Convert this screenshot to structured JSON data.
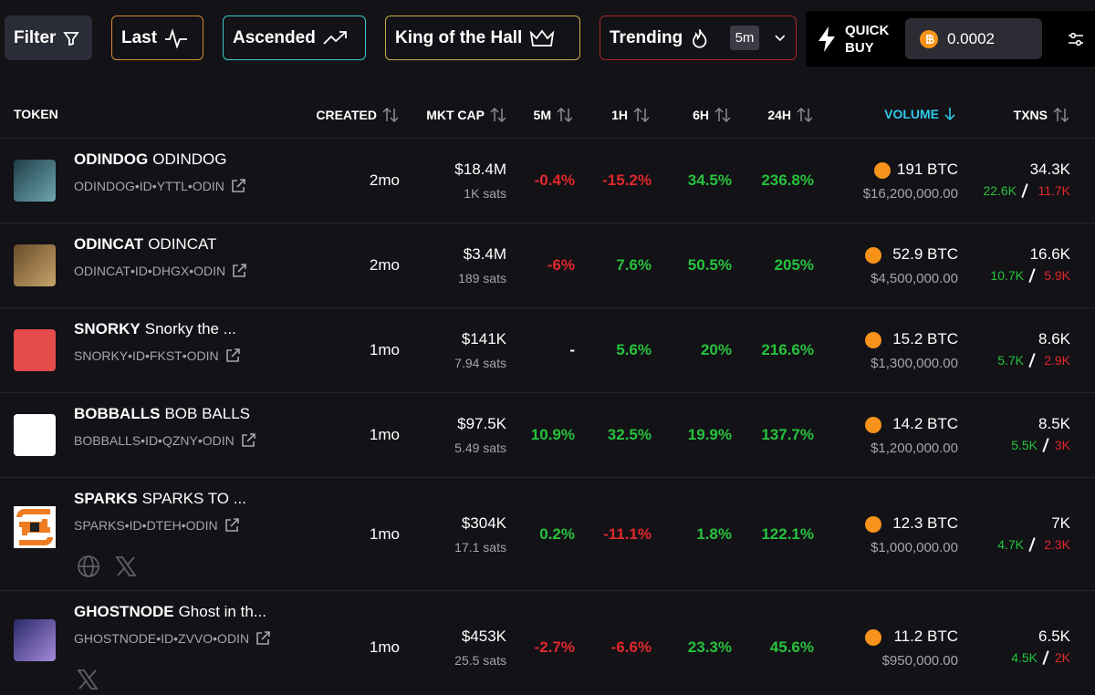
{
  "toolbar": {
    "filter": "Filter",
    "last": "Last",
    "ascended": "Ascended",
    "king": "King of the Hall",
    "trending": "Trending",
    "interval": "5m",
    "quick_buy": [
      "QUICK",
      "BUY"
    ],
    "amount": "0.0002"
  },
  "table": {
    "headers": {
      "token": "TOKEN",
      "created": "CREATED",
      "mkt_cap": "MKT CAP",
      "m5": "5M",
      "h1": "1H",
      "h6": "6H",
      "h24": "24H",
      "volume": "VOLUME",
      "txns": "TXNS"
    },
    "rows": [
      {
        "ticker": "ODINDOG",
        "name": "ODINDOG",
        "id": "ODINDOG•ID•YTTL•ODIN",
        "created": "2mo",
        "mkt_cap": "$18.4M",
        "sats": "1K sats",
        "m5": "-0.4%",
        "h1": "-15.2%",
        "h6": "34.5%",
        "h24": "236.8%",
        "volume": "191 BTC",
        "volume_usd": "$16,200,000.00",
        "txns": "34.3K",
        "buys": "22.6K",
        "sells": "11.7K"
      },
      {
        "ticker": "ODINCAT",
        "name": "ODINCAT",
        "id": "ODINCAT•ID•DHGX•ODIN",
        "created": "2mo",
        "mkt_cap": "$3.4M",
        "sats": "189 sats",
        "m5": "-6%",
        "h1": "7.6%",
        "h6": "50.5%",
        "h24": "205%",
        "volume": "52.9 BTC",
        "volume_usd": "$4,500,000.00",
        "txns": "16.6K",
        "buys": "10.7K",
        "sells": "5.9K"
      },
      {
        "ticker": "SNORKY",
        "name": "Snorky the ...",
        "id": "SNORKY•ID•FKST•ODIN",
        "created": "1mo",
        "mkt_cap": "$141K",
        "sats": "7.94 sats",
        "m5": "-",
        "h1": "5.6%",
        "h6": "20%",
        "h24": "216.6%",
        "volume": "15.2 BTC",
        "volume_usd": "$1,300,000.00",
        "txns": "8.6K",
        "buys": "5.7K",
        "sells": "2.9K"
      },
      {
        "ticker": "BOBBALLS",
        "name": "BOB BALLS",
        "id": "BOBBALLS•ID•QZNY•ODIN",
        "created": "1mo",
        "mkt_cap": "$97.5K",
        "sats": "5.49 sats",
        "m5": "10.9%",
        "h1": "32.5%",
        "h6": "19.9%",
        "h24": "137.7%",
        "volume": "14.2 BTC",
        "volume_usd": "$1,200,000.00",
        "txns": "8.5K",
        "buys": "5.5K",
        "sells": "3K"
      },
      {
        "ticker": "SPARKS",
        "name": "SPARKS TO ...",
        "id": "SPARKS•ID•DTEH•ODIN",
        "created": "1mo",
        "mkt_cap": "$304K",
        "sats": "17.1 sats",
        "m5": "0.2%",
        "h1": "-11.1%",
        "h6": "1.8%",
        "h24": "122.1%",
        "volume": "12.3 BTC",
        "volume_usd": "$1,000,000.00",
        "txns": "7K",
        "buys": "4.7K",
        "sells": "2.3K"
      },
      {
        "ticker": "GHOSTNODE",
        "name": "Ghost in th...",
        "id": "GHOSTNODE•ID•ZVVO•ODIN",
        "created": "1mo",
        "mkt_cap": "$453K",
        "sats": "25.5 sats",
        "m5": "-2.7%",
        "h1": "-6.6%",
        "h6": "23.3%",
        "h24": "45.6%",
        "volume": "11.2 BTC",
        "volume_usd": "$950,000.00",
        "txns": "6.5K",
        "buys": "4.5K",
        "sells": "2K"
      }
    ]
  }
}
